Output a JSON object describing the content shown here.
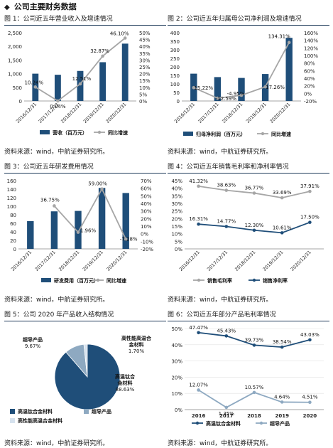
{
  "section_title": "公司主要财务数据",
  "source_text": "资料来源：wind，中航证券研究所。",
  "colors": {
    "navy": "#1f4e79",
    "grey": "#a6a6a6",
    "line_navy": "#1f4e79",
    "pie_light": "#8ea9c1",
    "pie_lighter": "#d6e2ee"
  },
  "chart_data": [
    {
      "type": "bar",
      "caption": "图 1：公司近五年营业收入及增速情况",
      "categories": [
        "2016/12/31",
        "2017/12/31",
        "2018/12/31",
        "2019/12/31",
        "2020/12/31"
      ],
      "series": [
        {
          "name": "营收（百万元）",
          "kind": "bar",
          "axis": "left",
          "values": [
            1000,
            960,
            1100,
            1420,
            2100
          ]
        },
        {
          "name": "同比增速",
          "kind": "line",
          "axis": "right",
          "values": [
            10.24,
            0.04,
            12.51,
            32.87,
            46.1
          ]
        }
      ],
      "data_labels": [
        "10.24%",
        "0.04%",
        "12.51%",
        "32.87%",
        "46.10%"
      ],
      "ylim_left": [
        0,
        2500
      ],
      "yticks_left": [
        "0",
        "500",
        "1,000",
        "1,500",
        "2,000",
        "2,500"
      ],
      "ylim_right": [
        0,
        50
      ],
      "yticks_right": [
        "0%",
        "5%",
        "10%",
        "15%",
        "20%",
        "25%",
        "30%",
        "35%",
        "40%",
        "45%",
        "50%"
      ]
    },
    {
      "type": "bar",
      "caption": "图 2：公司近五年归属母公司净利润及增速情况",
      "categories": [
        "2016/12/31",
        "2017/12/31",
        "2018/12/31",
        "2019/12/31",
        "2020/12/31"
      ],
      "series": [
        {
          "name": "归母净利润（百万元）",
          "kind": "bar",
          "axis": "left",
          "values": [
            160,
            140,
            135,
            158,
            370
          ]
        },
        {
          "name": "同比增速",
          "kind": "line",
          "axis": "right",
          "values": [
            15.22,
            -12.59,
            -4.95,
            17.26,
            134.31
          ]
        }
      ],
      "data_labels": [
        "15.22%",
        "-12.59%",
        "-4.95%",
        "17.26%",
        "134.31%"
      ],
      "ylim_left": [
        0,
        400
      ],
      "yticks_left": [
        "0",
        "50",
        "100",
        "150",
        "200",
        "250",
        "300",
        "350",
        "400"
      ],
      "ylim_right": [
        -20,
        160
      ],
      "yticks_right": [
        "-20%",
        "0%",
        "20%",
        "40%",
        "60%",
        "80%",
        "100%",
        "120%",
        "140%",
        "160%"
      ]
    },
    {
      "type": "bar",
      "caption": "图 3：公司近五年研发费用情况",
      "categories": [
        "2016/12/31",
        "2017/12/31",
        "2018/12/31",
        "2019/12/31",
        "2020/12/31"
      ],
      "series": [
        {
          "name": "研发费用（百万元）",
          "kind": "bar",
          "axis": "left",
          "values": [
            65,
            88,
            89,
            143,
            131
          ]
        },
        {
          "name": "同比增速",
          "kind": "line",
          "axis": "right",
          "values": [
            null,
            36.75,
            1.96,
            59.0,
            -7.28
          ]
        }
      ],
      "data_labels": [
        "",
        "36.75%",
        "1.96%",
        "59.00%",
        "-7.28%"
      ],
      "ylim_left": [
        0,
        160
      ],
      "yticks_left": [
        "0",
        "20",
        "40",
        "60",
        "80",
        "100",
        "120",
        "140",
        "160"
      ],
      "ylim_right": [
        -20,
        70
      ],
      "yticks_right": [
        "-20%",
        "-10%",
        "0%",
        "10%",
        "20%",
        "30%",
        "40%",
        "50%",
        "60%",
        "70%"
      ]
    },
    {
      "type": "line",
      "caption": "图 4：公司近五年销售毛利率和净利率情况",
      "categories": [
        "2016/12/31",
        "2017/12/31",
        "2018/12/31",
        "2019/12/31",
        "2020/12/31"
      ],
      "series": [
        {
          "name": "销售毛利率",
          "values": [
            41.32,
            38.63,
            36.77,
            33.69,
            37.91
          ]
        },
        {
          "name": "销售净利率",
          "values": [
            16.31,
            14.77,
            12.3,
            10.61,
            17.5
          ]
        }
      ],
      "labels_a": [
        "41.32%",
        "38.63%",
        "36.77%",
        "33.69%",
        "37.91%"
      ],
      "labels_b": [
        "16.31%",
        "14.77%",
        "12.30%",
        "10.61%",
        "17.50%"
      ],
      "ylim": [
        0,
        45
      ],
      "yticks": [
        "0%",
        "5%",
        "10%",
        "15%",
        "20%",
        "25%",
        "30%",
        "35%",
        "40%",
        "45%"
      ]
    },
    {
      "type": "pie",
      "caption": "图 5：公司 2020 年产品收入结构情况",
      "slices": [
        {
          "name": "高温钛合金材料",
          "value": 88.63
        },
        {
          "name": "超导产品",
          "value": 9.67
        },
        {
          "name": "高性能高温合金材料",
          "value": 1.7
        }
      ],
      "slice_labels": [
        {
          "name": "高温钛合\n金材料",
          "pct": "88.63%"
        },
        {
          "name": "超导产品",
          "pct": "9.67%"
        },
        {
          "name": "高性能高温合\n金材料",
          "pct": "1.70%"
        }
      ],
      "legend": [
        "高温钛合金材料",
        "超导产品",
        "高性能高温合金材料"
      ]
    },
    {
      "type": "line",
      "caption": "图 6：公司近五年部分产品毛利率情况",
      "categories": [
        "2016",
        "2017",
        "2018",
        "2019",
        "2020"
      ],
      "series": [
        {
          "name": "高温钛合金材料",
          "values": [
            47.47,
            45.43,
            39.73,
            38.54,
            43.03
          ]
        },
        {
          "name": "超导产品",
          "values": [
            12.07,
            1.35,
            10.57,
            4.64,
            4.51
          ]
        }
      ],
      "labels_a": [
        "47.47%",
        "45.43%",
        "39.73%",
        "38.54%",
        "43.03%"
      ],
      "labels_b": [
        "12.07%",
        "1.35%",
        "10.57%",
        "4.64%",
        "4.51%"
      ],
      "ylim": [
        0,
        50
      ],
      "yticks": [
        "0%",
        "10%",
        "20%",
        "30%",
        "40%",
        "50%"
      ]
    }
  ]
}
